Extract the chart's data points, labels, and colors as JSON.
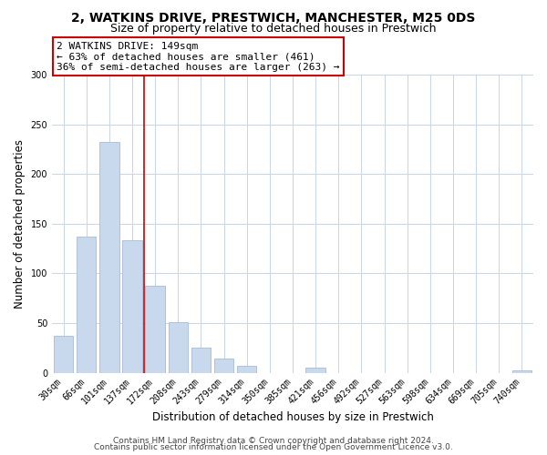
{
  "title": "2, WATKINS DRIVE, PRESTWICH, MANCHESTER, M25 0DS",
  "subtitle": "Size of property relative to detached houses in Prestwich",
  "xlabel": "Distribution of detached houses by size in Prestwich",
  "ylabel": "Number of detached properties",
  "bar_color": "#c8d8ed",
  "bar_edge_color": "#a8bcd8",
  "categories": [
    "30sqm",
    "66sqm",
    "101sqm",
    "137sqm",
    "172sqm",
    "208sqm",
    "243sqm",
    "279sqm",
    "314sqm",
    "350sqm",
    "385sqm",
    "421sqm",
    "456sqm",
    "492sqm",
    "527sqm",
    "563sqm",
    "598sqm",
    "634sqm",
    "669sqm",
    "705sqm",
    "740sqm"
  ],
  "values": [
    37,
    137,
    232,
    133,
    88,
    51,
    25,
    14,
    7,
    0,
    0,
    5,
    0,
    0,
    0,
    0,
    0,
    0,
    0,
    0,
    2
  ],
  "ylim": [
    0,
    300
  ],
  "yticks": [
    0,
    50,
    100,
    150,
    200,
    250,
    300
  ],
  "property_line_x": 3.5,
  "property_line_color": "#cc0000",
  "annotation_line1": "2 WATKINS DRIVE: 149sqm",
  "annotation_line2": "← 63% of detached houses are smaller (461)",
  "annotation_line3": "36% of semi-detached houses are larger (263) →",
  "footer_line1": "Contains HM Land Registry data © Crown copyright and database right 2024.",
  "footer_line2": "Contains public sector information licensed under the Open Government Licence v3.0.",
  "bg_color": "#ffffff",
  "grid_color": "#c8d4e8",
  "title_fontsize": 10,
  "subtitle_fontsize": 9,
  "axis_label_fontsize": 8.5,
  "tick_label_fontsize": 7,
  "annotation_fontsize": 8,
  "footer_fontsize": 6.5
}
